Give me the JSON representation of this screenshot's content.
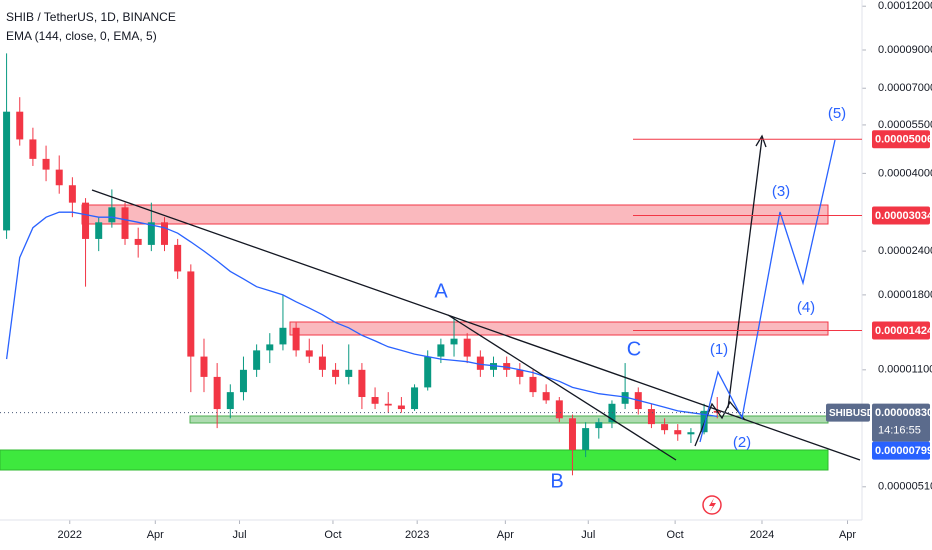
{
  "chart_data": {
    "type": "candlestick",
    "title": "SHIB / TetherUS, 1D, BINANCE",
    "subtitle": "EMA (144, close, 0, EMA, 5)",
    "log_scale": true,
    "grid": false,
    "up_color": "#089981",
    "down_color": "#f23645",
    "x": [
      0,
      1,
      2,
      3,
      4,
      5,
      6,
      7,
      8,
      9,
      10,
      11,
      12,
      13,
      14,
      15,
      16,
      17,
      18,
      19,
      20,
      21,
      22,
      23,
      24,
      25,
      26,
      27,
      28,
      29,
      30,
      31,
      32,
      33,
      34,
      35,
      36,
      37,
      38,
      39,
      40,
      41,
      42,
      43,
      44,
      45,
      46,
      47,
      48,
      49,
      50,
      51,
      52,
      53,
      54
    ],
    "xlim": [
      -0.5,
      65
    ],
    "xticks": [
      {
        "value": 4.8,
        "label": "2022"
      },
      {
        "value": 11.3,
        "label": "Apr"
      },
      {
        "value": 17.7,
        "label": "Jul"
      },
      {
        "value": 24.8,
        "label": "Oct"
      },
      {
        "value": 31.2,
        "label": "2023"
      },
      {
        "value": 37.9,
        "label": "Apr"
      },
      {
        "value": 44.2,
        "label": "Jul"
      },
      {
        "value": 50.8,
        "label": "Oct"
      },
      {
        "value": 57.4,
        "label": "2024"
      },
      {
        "value": 63.9,
        "label": "Apr"
      }
    ],
    "ylim": [
      4.1e-06,
      0.000125
    ],
    "yticks": [
      {
        "value": 0.00012,
        "label": "0.00012000"
      },
      {
        "value": 9e-05,
        "label": "0.00009000"
      },
      {
        "value": 7e-05,
        "label": "0.00007000"
      },
      {
        "value": 5.5e-05,
        "label": "0.00005500"
      },
      {
        "value": 4e-05,
        "label": "0.00004000"
      },
      {
        "value": 2.4e-05,
        "label": "0.00002400"
      },
      {
        "value": 1.8e-05,
        "label": "0.00001800"
      },
      {
        "value": 1.1e-05,
        "label": "0.00001100"
      },
      {
        "value": 5.1e-06,
        "label": "0.00000510"
      }
    ],
    "open": [
      2.75e-05,
      6e-05,
      5e-05,
      4.4e-05,
      4.1e-05,
      3.7e-05,
      3.3e-05,
      2.6e-05,
      2.9e-05,
      3.2e-05,
      2.6e-05,
      2.5e-05,
      2.9e-05,
      2.5e-05,
      2.1e-05,
      1.2e-05,
      1.05e-05,
      8.5e-06,
      9.5e-06,
      1.1e-05,
      1.25e-05,
      1.3e-05,
      1.45e-05,
      1.25e-05,
      1.2e-05,
      1.1e-05,
      1.05e-05,
      1.1e-05,
      9.2e-06,
      8.8e-06,
      8.7e-06,
      8.5e-06,
      9.8e-06,
      1.2e-05,
      1.3e-05,
      1.35e-05,
      1.2e-05,
      1.1e-05,
      1.15e-05,
      1.1e-05,
      1.05e-05,
      9.5e-06,
      9e-06,
      8e-06,
      6.5e-06,
      7.5e-06,
      7.8e-06,
      8.8e-06,
      9.5e-06,
      8.5e-06,
      7.7e-06,
      7.4e-06,
      7.2e-06,
      7.3e-06,
      8.4e-06
    ],
    "high": [
      8.8e-05,
      6.6e-05,
      5.4e-05,
      4.8e-05,
      4.5e-05,
      3.9e-05,
      3.4e-05,
      3e-05,
      3.6e-05,
      3.3e-05,
      2.8e-05,
      3.3e-05,
      3e-05,
      2.6e-05,
      2.2e-05,
      1.35e-05,
      1.15e-05,
      1e-05,
      1.2e-05,
      1.3e-05,
      1.4e-05,
      1.8e-05,
      1.5e-05,
      1.35e-05,
      1.3e-05,
      1.15e-05,
      1.3e-05,
      1.15e-05,
      9.8e-06,
      9.5e-06,
      9.2e-06,
      1e-05,
      1.25e-05,
      1.35e-05,
      1.55e-05,
      1.4e-05,
      1.25e-05,
      1.2e-05,
      1.2e-05,
      1.15e-05,
      1.1e-05,
      1e-05,
      9.2e-06,
      8.2e-06,
      7.8e-06,
      8e-06,
      9e-06,
      1.15e-05,
      9.8e-06,
      8.8e-06,
      8e-06,
      7.7e-06,
      7.5e-06,
      8.8e-06,
      9.2e-06
    ],
    "low": [
      2.6e-05,
      4.8e-05,
      4.2e-05,
      3.8e-05,
      3.5e-05,
      3e-05,
      1.9e-05,
      2.4e-05,
      2.8e-05,
      2.5e-05,
      2.3e-05,
      2.4e-05,
      2.4e-05,
      2e-05,
      9.5e-06,
      9.5e-06,
      7.5e-06,
      8e-06,
      9e-06,
      1.05e-05,
      1.15e-05,
      1.25e-05,
      1.2e-05,
      1.15e-05,
      1.05e-05,
      1e-05,
      1e-05,
      8.5e-06,
      8.5e-06,
      8.3e-06,
      8.3e-06,
      8.4e-06,
      9.6e-06,
      1.15e-05,
      1.2e-05,
      1.15e-05,
      1.05e-05,
      1.05e-05,
      1.05e-05,
      1e-05,
      9.2e-06,
      8.8e-06,
      7.8e-06,
      5.5e-06,
      6.2e-06,
      7e-06,
      7.5e-06,
      8.5e-06,
      8.2e-06,
      7.5e-06,
      7.2e-06,
      6.9e-06,
      6.8e-06,
      7.2e-06,
      8e-06
    ],
    "close": [
      6e-05,
      5e-05,
      4.4e-05,
      4.1e-05,
      3.7e-05,
      3.3e-05,
      2.6e-05,
      2.9e-05,
      3.2e-05,
      2.6e-05,
      2.5e-05,
      2.9e-05,
      2.5e-05,
      2.1e-05,
      1.2e-05,
      1.05e-05,
      8.5e-06,
      9.5e-06,
      1.1e-05,
      1.25e-05,
      1.3e-05,
      1.45e-05,
      1.25e-05,
      1.2e-05,
      1.1e-05,
      1.05e-05,
      1.1e-05,
      9.2e-06,
      8.8e-06,
      8.7e-06,
      8.5e-06,
      9.8e-06,
      1.2e-05,
      1.3e-05,
      1.35e-05,
      1.2e-05,
      1.1e-05,
      1.15e-05,
      1.1e-05,
      1.05e-05,
      9.5e-06,
      9e-06,
      8e-06,
      6.5e-06,
      7.5e-06,
      7.8e-06,
      8.8e-06,
      9.5e-06,
      8.5e-06,
      7.7e-06,
      7.4e-06,
      7.2e-06,
      7.3e-06,
      8.4e-06,
      8.3e-06
    ],
    "ema": {
      "color": "#2962ff",
      "values": [
        1.18e-05,
        2.3e-05,
        2.8e-05,
        3e-05,
        3.1e-05,
        3.1e-05,
        3.05e-05,
        3e-05,
        3e-05,
        2.95e-05,
        2.9e-05,
        2.85e-05,
        2.8e-05,
        2.7e-05,
        2.55e-05,
        2.4e-05,
        2.25e-05,
        2.1e-05,
        2e-05,
        1.9e-05,
        1.85e-05,
        1.8e-05,
        1.72e-05,
        1.65e-05,
        1.58e-05,
        1.5e-05,
        1.45e-05,
        1.38e-05,
        1.33e-05,
        1.28e-05,
        1.25e-05,
        1.22e-05,
        1.2e-05,
        1.18e-05,
        1.17e-05,
        1.16e-05,
        1.14e-05,
        1.13e-05,
        1.12e-05,
        1.1e-05,
        1.08e-05,
        1.05e-05,
        1.02e-05,
        9.8e-06,
        9.6e-06,
        9.4e-06,
        9.3e-06,
        9.2e-06,
        9e-06,
        8.8e-06,
        8.6e-06,
        8.4e-06,
        8.3e-06,
        8.2e-06,
        8.1e-06
      ]
    },
    "price_lines": [
      {
        "value": 5.006e-05,
        "label": "0.00005006"
      },
      {
        "value": 3.034e-05,
        "label": "0.00003034"
      },
      {
        "value": 1.424e-05,
        "label": "0.00001424"
      }
    ],
    "last_price": {
      "symbol": "SHIBUSDT",
      "value": 8.3e-06,
      "label": "0.00000830",
      "countdown": "14:16:55"
    },
    "ema_label": "0.00000799",
    "annotations": [
      "A",
      "B",
      "C",
      "(1)",
      "(2)",
      "(3)",
      "(4)",
      "(5)"
    ]
  }
}
